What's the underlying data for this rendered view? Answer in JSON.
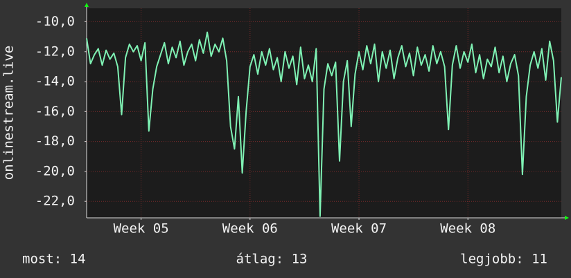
{
  "chart_data": {
    "type": "line",
    "ylabel": "onlinestream.live",
    "color": "#7ff2b4",
    "x": [
      0,
      0.25,
      0.5,
      0.75,
      1,
      1.25,
      1.5,
      1.75,
      2,
      2.25,
      2.5,
      2.75,
      3,
      3.25,
      3.5,
      3.75,
      4,
      4.25,
      4.5,
      4.75,
      5,
      5.25,
      5.5,
      5.75,
      6,
      6.25,
      6.5,
      6.75,
      7,
      7.25,
      7.5,
      7.75,
      8,
      8.25,
      8.5,
      8.75,
      9,
      9.25,
      9.5,
      9.75,
      10,
      10.25,
      10.5,
      10.75,
      11,
      11.25,
      11.5,
      11.75,
      12,
      12.25,
      12.5,
      12.75,
      13,
      13.25,
      13.5,
      13.75,
      14,
      14.25,
      14.5,
      14.75,
      15,
      15.25,
      15.5,
      15.75,
      16,
      16.25,
      16.5,
      16.75,
      17,
      17.25,
      17.5,
      17.75,
      18,
      18.25,
      18.5,
      18.75,
      19,
      19.25,
      19.5,
      19.75,
      20,
      20.25,
      20.5,
      20.75,
      21,
      21.25,
      21.5,
      21.75,
      22,
      22.25,
      22.5,
      22.75,
      23,
      23.25,
      23.5,
      23.75,
      24,
      24.25,
      24.5,
      24.75,
      25,
      25.25,
      25.5,
      25.75,
      26,
      26.25,
      26.5,
      26.75,
      27,
      27.25,
      27.5,
      27.75,
      28,
      28.25,
      28.5,
      28.75,
      29,
      29.25,
      29.5,
      29.75,
      30,
      30.25,
      30.5
    ],
    "values": [
      -11.1,
      -12.8,
      -12.2,
      -11.8,
      -12.9,
      -11.9,
      -12.5,
      -12.1,
      -13.0,
      -16.2,
      -12.4,
      -11.5,
      -12.0,
      -11.6,
      -12.6,
      -11.4,
      -17.3,
      -14.5,
      -13.0,
      -12.2,
      -11.4,
      -12.8,
      -11.7,
      -12.4,
      -11.3,
      -12.9,
      -12.0,
      -11.5,
      -12.6,
      -11.2,
      -12.1,
      -10.7,
      -12.3,
      -11.5,
      -12.0,
      -11.1,
      -12.6,
      -17.0,
      -18.5,
      -15.0,
      -20.1,
      -16.0,
      -13.0,
      -12.2,
      -13.5,
      -12.0,
      -12.9,
      -11.8,
      -13.2,
      -12.4,
      -14.0,
      -12.0,
      -13.1,
      -12.3,
      -14.2,
      -11.7,
      -13.8,
      -12.9,
      -14.0,
      -11.8,
      -23.0,
      -14.5,
      -12.8,
      -13.6,
      -12.7,
      -19.3,
      -14.0,
      -12.6,
      -17.0,
      -13.5,
      -12.0,
      -13.2,
      -11.6,
      -12.8,
      -11.5,
      -14.0,
      -12.0,
      -13.1,
      -11.9,
      -13.8,
      -12.4,
      -11.6,
      -13.0,
      -12.1,
      -13.6,
      -11.7,
      -12.9,
      -12.2,
      -13.3,
      -11.6,
      -12.8,
      -12.0,
      -13.0,
      -17.2,
      -12.9,
      -11.6,
      -13.1,
      -12.0,
      -12.7,
      -11.5,
      -13.4,
      -12.2,
      -13.8,
      -12.5,
      -13.0,
      -11.7,
      -13.4,
      -12.3,
      -14.0,
      -12.8,
      -12.2,
      -13.6,
      -20.2,
      -15.0,
      -12.9,
      -12.0,
      -13.1,
      -11.8,
      -13.9,
      -11.3,
      -12.6,
      -16.7,
      -13.7
    ],
    "xlim": [
      0,
      30.5
    ],
    "xticks": [
      {
        "value": 3.5,
        "label": "Week 05"
      },
      {
        "value": 10.5,
        "label": "Week 06"
      },
      {
        "value": 17.5,
        "label": "Week 07"
      },
      {
        "value": 24.5,
        "label": "Week 08"
      }
    ],
    "ylim": [
      -23.1,
      -9.1
    ],
    "yticks": [
      {
        "value": -10,
        "label": "-10,0"
      },
      {
        "value": -12,
        "label": "-12,0"
      },
      {
        "value": -14,
        "label": "-14,0"
      },
      {
        "value": -16,
        "label": "-16,0"
      },
      {
        "value": -18,
        "label": "-18,0"
      },
      {
        "value": -20,
        "label": "-20,0"
      },
      {
        "value": -22,
        "label": "-22,0"
      }
    ],
    "grid": true,
    "annotations": [
      "most: 14",
      "átlag: 13",
      "legjobb: 11"
    ]
  }
}
